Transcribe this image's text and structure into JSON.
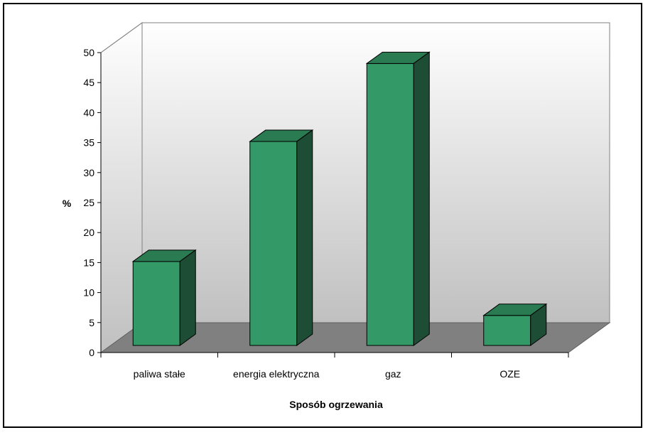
{
  "chart_data": {
    "type": "bar",
    "categories": [
      "paliwa stałe",
      "energia elektryczna",
      "gaz",
      "OZE"
    ],
    "values": [
      14,
      34,
      47,
      5
    ],
    "xlabel": "Sposób ogrzewania",
    "ylabel": "%",
    "ylim": [
      0,
      50
    ],
    "yticks": [
      "0",
      "5",
      "10",
      "15",
      "20",
      "25",
      "30",
      "35",
      "40",
      "45",
      "50"
    ],
    "grid": false,
    "legend": "none",
    "colors": {
      "bar_front": "#339966",
      "bar_top": "#2a7a52",
      "bar_side": "#1e4d36",
      "floor": "#808080",
      "back_wall_top": "#ffffff",
      "back_wall_bottom": "#c0c0c0"
    }
  }
}
